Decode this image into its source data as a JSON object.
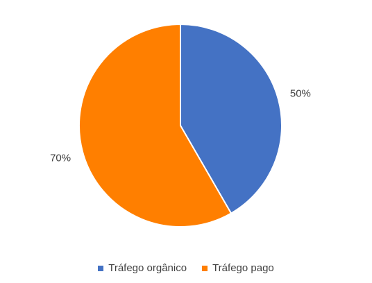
{
  "chart_data": {
    "type": "pie",
    "title": "",
    "categories": [
      "Tráfego orgânico",
      "Tráfego pago"
    ],
    "values": [
      50,
      70
    ],
    "data_labels": [
      "50%",
      "70%"
    ],
    "colors": [
      "#4472C4",
      "#FF7F00"
    ],
    "start_angle_deg": 0,
    "direction": "clockwise",
    "legend_position": "bottom"
  }
}
